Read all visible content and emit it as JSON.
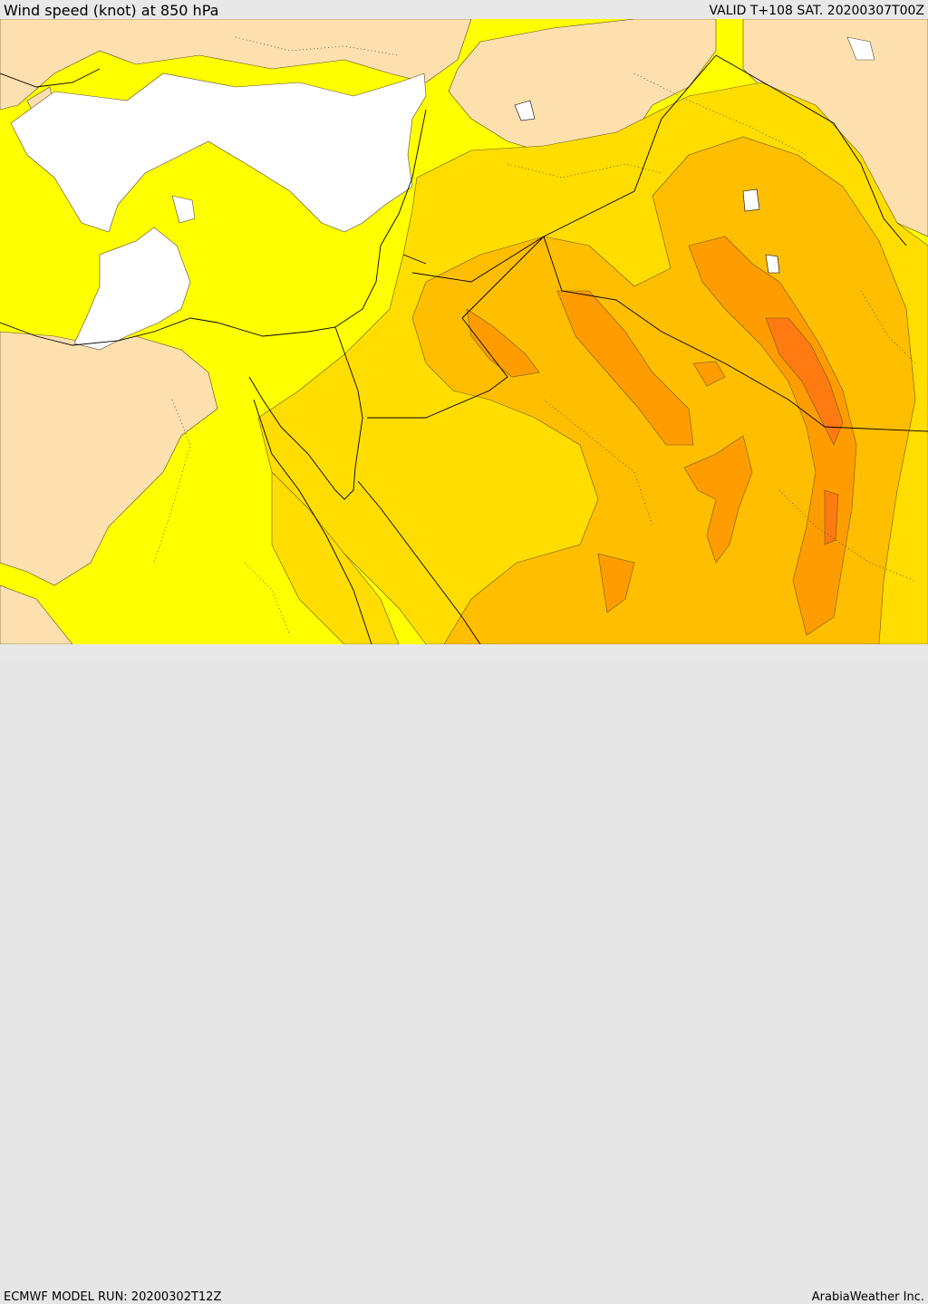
{
  "header": {
    "title": "Wind speed (knot) at 850 hPa",
    "valid": "VALID T+108 SAT. 20200307T00Z"
  },
  "footer": {
    "model_run": "ECMWF MODEL RUN: 20200302T12Z",
    "credit": "ArabiaWeather Inc."
  },
  "colors": {
    "land_low": "#fde0ad",
    "band_1": "#ffff00",
    "band_2": "#ffdd00",
    "band_3": "#ffbe00",
    "band_4": "#ff9d00",
    "band_5": "#ff7a10",
    "sea_calm": "#ffffff"
  }
}
